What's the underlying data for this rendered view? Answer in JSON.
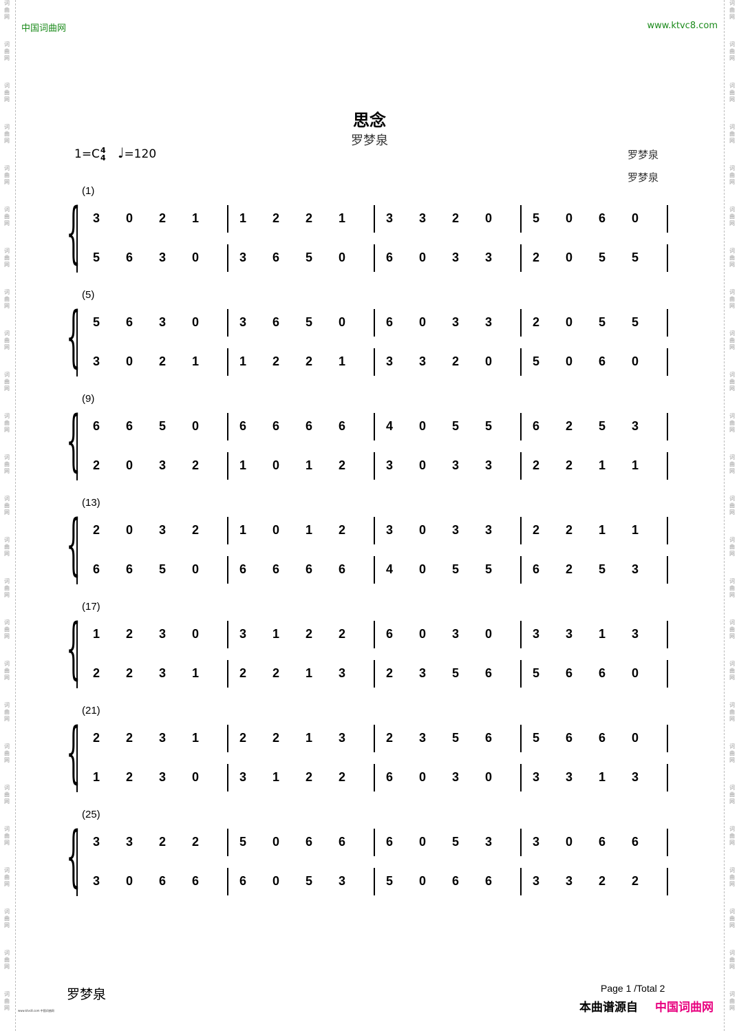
{
  "header": {
    "site_left": "中国词曲网",
    "site_right": "www.ktvc8.com",
    "watermark": "词曲网"
  },
  "song": {
    "title": "思念",
    "subtitle": "罗梦泉",
    "credit_1": "罗梦泉",
    "credit_2": "罗梦泉",
    "key": "1=C",
    "time_top": "4",
    "time_bottom": "4",
    "tempo": "=120"
  },
  "systems": [
    {
      "label": "(1)",
      "upper": [
        "3",
        "0",
        "2",
        "1",
        "1",
        "2",
        "2",
        "1",
        "3",
        "3",
        "2",
        "0",
        "5",
        "0",
        "6",
        "0"
      ],
      "lower": [
        "5",
        "6",
        "3",
        "0",
        "3",
        "6",
        "5",
        "0",
        "6",
        "0",
        "3",
        "3",
        "2",
        "0",
        "5",
        "5"
      ]
    },
    {
      "label": "(5)",
      "upper": [
        "5",
        "6",
        "3",
        "0",
        "3",
        "6",
        "5",
        "0",
        "6",
        "0",
        "3",
        "3",
        "2",
        "0",
        "5",
        "5"
      ],
      "lower": [
        "3",
        "0",
        "2",
        "1",
        "1",
        "2",
        "2",
        "1",
        "3",
        "3",
        "2",
        "0",
        "5",
        "0",
        "6",
        "0"
      ]
    },
    {
      "label": "(9)",
      "upper": [
        "6",
        "6",
        "5",
        "0",
        "6",
        "6",
        "6",
        "6",
        "4",
        "0",
        "5",
        "5",
        "6",
        "2",
        "5",
        "3"
      ],
      "lower": [
        "2",
        "0",
        "3",
        "2",
        "1",
        "0",
        "1",
        "2",
        "3",
        "0",
        "3",
        "3",
        "2",
        "2",
        "1",
        "1"
      ]
    },
    {
      "label": "(13)",
      "upper": [
        "2",
        "0",
        "3",
        "2",
        "1",
        "0",
        "1",
        "2",
        "3",
        "0",
        "3",
        "3",
        "2",
        "2",
        "1",
        "1"
      ],
      "lower": [
        "6",
        "6",
        "5",
        "0",
        "6",
        "6",
        "6",
        "6",
        "4",
        "0",
        "5",
        "5",
        "6",
        "2",
        "5",
        "3"
      ]
    },
    {
      "label": "(17)",
      "upper": [
        "1",
        "2",
        "3",
        "0",
        "3",
        "1",
        "2",
        "2",
        "6",
        "0",
        "3",
        "0",
        "3",
        "3",
        "1",
        "3"
      ],
      "lower": [
        "2",
        "2",
        "3",
        "1",
        "2",
        "2",
        "1",
        "3",
        "2",
        "3",
        "5",
        "6",
        "5",
        "6",
        "6",
        "0"
      ]
    },
    {
      "label": "(21)",
      "upper": [
        "2",
        "2",
        "3",
        "1",
        "2",
        "2",
        "1",
        "3",
        "2",
        "3",
        "5",
        "6",
        "5",
        "6",
        "6",
        "0"
      ],
      "lower": [
        "1",
        "2",
        "3",
        "0",
        "3",
        "1",
        "2",
        "2",
        "6",
        "0",
        "3",
        "0",
        "3",
        "3",
        "1",
        "3"
      ]
    },
    {
      "label": "(25)",
      "upper": [
        "3",
        "3",
        "2",
        "2",
        "5",
        "0",
        "6",
        "6",
        "6",
        "0",
        "5",
        "3",
        "3",
        "0",
        "6",
        "6"
      ],
      "lower": [
        "3",
        "0",
        "6",
        "6",
        "6",
        "0",
        "5",
        "3",
        "5",
        "0",
        "6",
        "6",
        "3",
        "3",
        "2",
        "2"
      ]
    }
  ],
  "footer": {
    "author": "罗梦泉",
    "page": "Page 1 /Total 2",
    "source_label": "本曲谱源自",
    "source_site": "中国词曲网",
    "tiny": "www.ktvc8.com 中国词曲网"
  },
  "colors": {
    "site_green": "#1a8a1a",
    "source_pink": "#e8007f"
  }
}
